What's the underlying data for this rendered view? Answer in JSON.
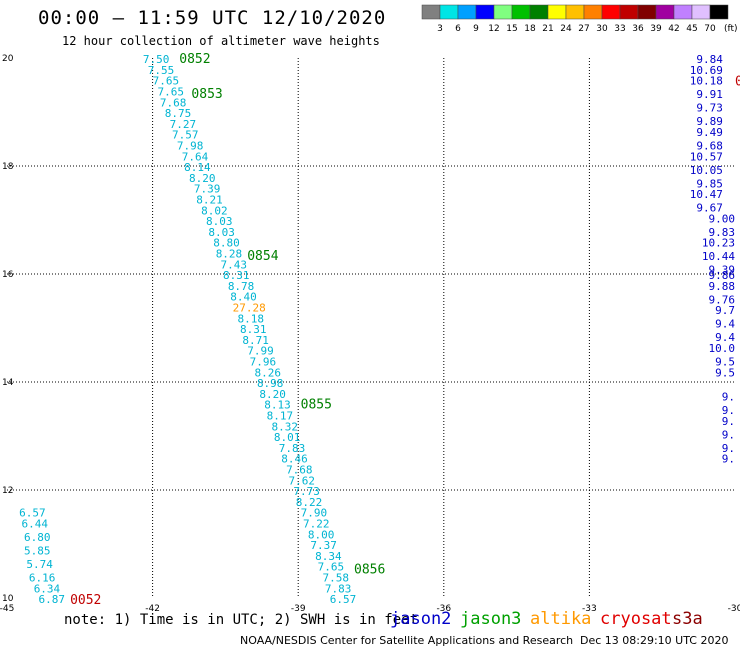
{
  "title": "00:00 – 11:59 UTC 12/10/2020",
  "subtitle": "12 hour collection of altimeter wave heights",
  "legend": {
    "unit": "(ft)",
    "colors": [
      "#808080",
      "#00e5e5",
      "#00a0ff",
      "#0000ff",
      "#80ff80",
      "#00c000",
      "#008000",
      "#ffff00",
      "#ffc000",
      "#ff8000",
      "#ff0000",
      "#c00000",
      "#800000",
      "#a000a0",
      "#c080ff",
      "#e0c0ff",
      "#000000"
    ],
    "labels": [
      "3",
      "6",
      "9",
      "12",
      "15",
      "18",
      "21",
      "24",
      "27",
      "30",
      "33",
      "36",
      "39",
      "42",
      "45",
      "70"
    ]
  },
  "axes": {
    "lon_ticks": [
      "-45",
      "-42",
      "-39",
      "-36",
      "-33",
      "-30"
    ],
    "lat_ticks": [
      "20",
      "18",
      "16",
      "14",
      "12",
      "10"
    ],
    "lon_range": [
      -45,
      -30
    ],
    "lat_range": [
      10,
      20
    ],
    "grid": "dotted"
  },
  "colors": {
    "swh_default": "#00b4d2",
    "swh_orange": "#ff9900",
    "swh_jason2": "#0000c8",
    "time_label": "#008000",
    "time_label_red": "#c00000"
  },
  "chart_data": {
    "type": "scatter",
    "tracks": [
      {
        "color": "swh_default",
        "points": [
          {
            "lon": -42.2,
            "lat": 19.98,
            "label": "7.50"
          },
          {
            "lon": -42.1,
            "lat": 19.78,
            "label": "7.55"
          },
          {
            "lon": -42.0,
            "lat": 19.58,
            "label": "7.65"
          },
          {
            "lon": -41.9,
            "lat": 19.38,
            "label": "7.65"
          },
          {
            "lon": -41.85,
            "lat": 19.18,
            "label": "7.68"
          },
          {
            "lon": -41.75,
            "lat": 18.98,
            "label": "8.75"
          },
          {
            "lon": -41.65,
            "lat": 18.78,
            "label": "7.27"
          },
          {
            "lon": -41.6,
            "lat": 18.58,
            "label": "7.57"
          },
          {
            "lon": -41.5,
            "lat": 18.38,
            "label": "7.98"
          },
          {
            "lon": -41.4,
            "lat": 18.18,
            "label": "7.64"
          },
          {
            "lon": -41.35,
            "lat": 17.98,
            "label": "8.14"
          },
          {
            "lon": -41.25,
            "lat": 17.78,
            "label": "8.20"
          },
          {
            "lon": -41.15,
            "lat": 17.58,
            "label": "7.39"
          },
          {
            "lon": -41.1,
            "lat": 17.38,
            "label": "8.21"
          },
          {
            "lon": -41.0,
            "lat": 17.18,
            "label": "8.02"
          },
          {
            "lon": -40.9,
            "lat": 16.98,
            "label": "8.03"
          },
          {
            "lon": -40.85,
            "lat": 16.78,
            "label": "8.03"
          },
          {
            "lon": -40.75,
            "lat": 16.58,
            "label": "8.80"
          },
          {
            "lon": -40.7,
            "lat": 16.38,
            "label": "8.28"
          },
          {
            "lon": -40.6,
            "lat": 16.18,
            "label": "7.43"
          },
          {
            "lon": -40.55,
            "lat": 15.98,
            "label": "8.31"
          },
          {
            "lon": -40.45,
            "lat": 15.78,
            "label": "8.78"
          },
          {
            "lon": -40.4,
            "lat": 15.58,
            "label": "8.40"
          },
          {
            "lon": -40.35,
            "lat": 15.38,
            "label": "27.28",
            "color": "swh_orange"
          },
          {
            "lon": -40.25,
            "lat": 15.18,
            "label": "8.18"
          },
          {
            "lon": -40.2,
            "lat": 14.98,
            "label": "8.31"
          },
          {
            "lon": -40.15,
            "lat": 14.78,
            "label": "8.71"
          },
          {
            "lon": -40.05,
            "lat": 14.58,
            "label": "7.99"
          },
          {
            "lon": -40.0,
            "lat": 14.38,
            "label": "7.96"
          },
          {
            "lon": -39.9,
            "lat": 14.18,
            "label": "8.26"
          },
          {
            "lon": -39.85,
            "lat": 13.98,
            "label": "8.98"
          },
          {
            "lon": -39.8,
            "lat": 13.78,
            "label": "8.20"
          },
          {
            "lon": -39.7,
            "lat": 13.58,
            "label": "8.13"
          },
          {
            "lon": -39.65,
            "lat": 13.38,
            "label": "8.17"
          },
          {
            "lon": -39.55,
            "lat": 13.18,
            "label": "8.32"
          },
          {
            "lon": -39.5,
            "lat": 12.98,
            "label": "8.01"
          },
          {
            "lon": -39.4,
            "lat": 12.78,
            "label": "7.83"
          },
          {
            "lon": -39.35,
            "lat": 12.58,
            "label": "8.46"
          },
          {
            "lon": -39.25,
            "lat": 12.38,
            "label": "7.68"
          },
          {
            "lon": -39.2,
            "lat": 12.18,
            "label": "7.62"
          },
          {
            "lon": -39.1,
            "lat": 11.98,
            "label": "7.73"
          },
          {
            "lon": -39.05,
            "lat": 11.78,
            "label": "8.22"
          },
          {
            "lon": -38.95,
            "lat": 11.58,
            "label": "7.90"
          },
          {
            "lon": -38.9,
            "lat": 11.38,
            "label": "7.22"
          },
          {
            "lon": -38.8,
            "lat": 11.18,
            "label": "8.00"
          },
          {
            "lon": -38.75,
            "lat": 10.98,
            "label": "7.37"
          },
          {
            "lon": -38.65,
            "lat": 10.78,
            "label": "8.34"
          },
          {
            "lon": -38.6,
            "lat": 10.58,
            "label": "7.65"
          },
          {
            "lon": -38.5,
            "lat": 10.38,
            "label": "7.58"
          },
          {
            "lon": -38.45,
            "lat": 10.18,
            "label": "7.83"
          },
          {
            "lon": -38.35,
            "lat": 9.98,
            "label": "6.57"
          }
        ],
        "time_labels": [
          {
            "lon": -41.45,
            "lat": 20.0,
            "label": "0852"
          },
          {
            "lon": -41.2,
            "lat": 19.35,
            "label": "0853"
          },
          {
            "lon": -40.05,
            "lat": 16.35,
            "label": "0854"
          },
          {
            "lon": -38.95,
            "lat": 13.6,
            "label": "0855"
          },
          {
            "lon": -37.85,
            "lat": 10.55,
            "label": "0856"
          }
        ]
      },
      {
        "color": "swh_default",
        "points": [
          {
            "lon": -44.75,
            "lat": 11.58,
            "label": "6.57"
          },
          {
            "lon": -44.7,
            "lat": 11.38,
            "label": "6.44"
          },
          {
            "lon": -44.65,
            "lat": 11.13,
            "label": "6.80"
          },
          {
            "lon": -44.65,
            "lat": 10.88,
            "label": "5.85"
          },
          {
            "lon": -44.6,
            "lat": 10.63,
            "label": "5.74"
          },
          {
            "lon": -44.55,
            "lat": 10.38,
            "label": "6.16"
          },
          {
            "lon": -44.45,
            "lat": 10.18,
            "label": "6.34"
          },
          {
            "lon": -44.35,
            "lat": 9.98,
            "label": "6.87"
          }
        ],
        "time_labels": [
          {
            "lon": -43.7,
            "lat": 9.98,
            "label": "0052",
            "color": "time_label_red"
          }
        ]
      },
      {
        "color": "swh_jason2",
        "align": "end",
        "points": [
          {
            "lon": -30.25,
            "lat": 19.98,
            "label": "9.84"
          },
          {
            "lon": -30.25,
            "lat": 19.78,
            "label": "10.69"
          },
          {
            "lon": -30.25,
            "lat": 19.58,
            "label": "10.18"
          },
          {
            "lon": -30.25,
            "lat": 19.33,
            "label": "9.91"
          },
          {
            "lon": -30.25,
            "lat": 19.08,
            "label": "9.73"
          },
          {
            "lon": -30.25,
            "lat": 18.83,
            "label": "9.89"
          },
          {
            "lon": -30.25,
            "lat": 18.63,
            "label": "9.49"
          },
          {
            "lon": -30.25,
            "lat": 18.38,
            "label": "9.68"
          },
          {
            "lon": -30.25,
            "lat": 18.18,
            "label": "10.57"
          },
          {
            "lon": -30.25,
            "lat": 17.93,
            "label": "10.05"
          },
          {
            "lon": -30.25,
            "lat": 17.68,
            "label": "9.85"
          },
          {
            "lon": -30.25,
            "lat": 17.48,
            "label": "10.47"
          },
          {
            "lon": -30.25,
            "lat": 17.23,
            "label": "9.67"
          },
          {
            "lon": -30.0,
            "lat": 17.03,
            "label": "9.00"
          },
          {
            "lon": -30.0,
            "lat": 16.78,
            "label": "9.83"
          },
          {
            "lon": -30.0,
            "lat": 16.58,
            "label": "10.23"
          },
          {
            "lon": -30.0,
            "lat": 16.33,
            "label": "10.44"
          },
          {
            "lon": -30.0,
            "lat": 16.08,
            "label": "9.39"
          },
          {
            "lon": -30.0,
            "lat": 15.98,
            "label": "9.86"
          },
          {
            "lon": -30.0,
            "lat": 15.78,
            "label": "9.88"
          },
          {
            "lon": -30.0,
            "lat": 15.53,
            "label": "9.76"
          },
          {
            "lon": -30.0,
            "lat": 15.33,
            "label": "9.7"
          },
          {
            "lon": -30.0,
            "lat": 15.08,
            "label": "9.4"
          },
          {
            "lon": -30.0,
            "lat": 14.83,
            "label": "9.4"
          },
          {
            "lon": -30.0,
            "lat": 14.63,
            "label": "10.0"
          },
          {
            "lon": -30.0,
            "lat": 14.38,
            "label": "9.5"
          },
          {
            "lon": -30.0,
            "lat": 14.18,
            "label": "9.5"
          },
          {
            "lon": -30.0,
            "lat": 13.73,
            "label": "9."
          },
          {
            "lon": -30.0,
            "lat": 13.48,
            "label": "9."
          },
          {
            "lon": -30.0,
            "lat": 13.28,
            "label": "9."
          },
          {
            "lon": -30.0,
            "lat": 13.03,
            "label": "9."
          },
          {
            "lon": -30.0,
            "lat": 12.78,
            "label": "9."
          },
          {
            "lon": -30.0,
            "lat": 12.58,
            "label": "9."
          }
        ],
        "time_labels": [
          {
            "lon": -30.0,
            "lat": 19.58,
            "label": "0",
            "color": "time_label_red"
          }
        ]
      }
    ]
  },
  "note": "note: 1) Time is in UTC; 2) SWH is in feet",
  "satellites": [
    {
      "name": "jason2",
      "color": "#0000c8"
    },
    {
      "name": "jason3",
      "color": "#00a000"
    },
    {
      "name": "altika",
      "color": "#ff9900"
    },
    {
      "name": "cryosat",
      "color": "#e00000"
    },
    {
      "name": "s3a",
      "color": "#8b0000"
    }
  ],
  "credit": "NOAA/NESDIS Center for Satellite Applications and Research",
  "timestamp": "Dec 13 08:29:10 UTC 2020"
}
